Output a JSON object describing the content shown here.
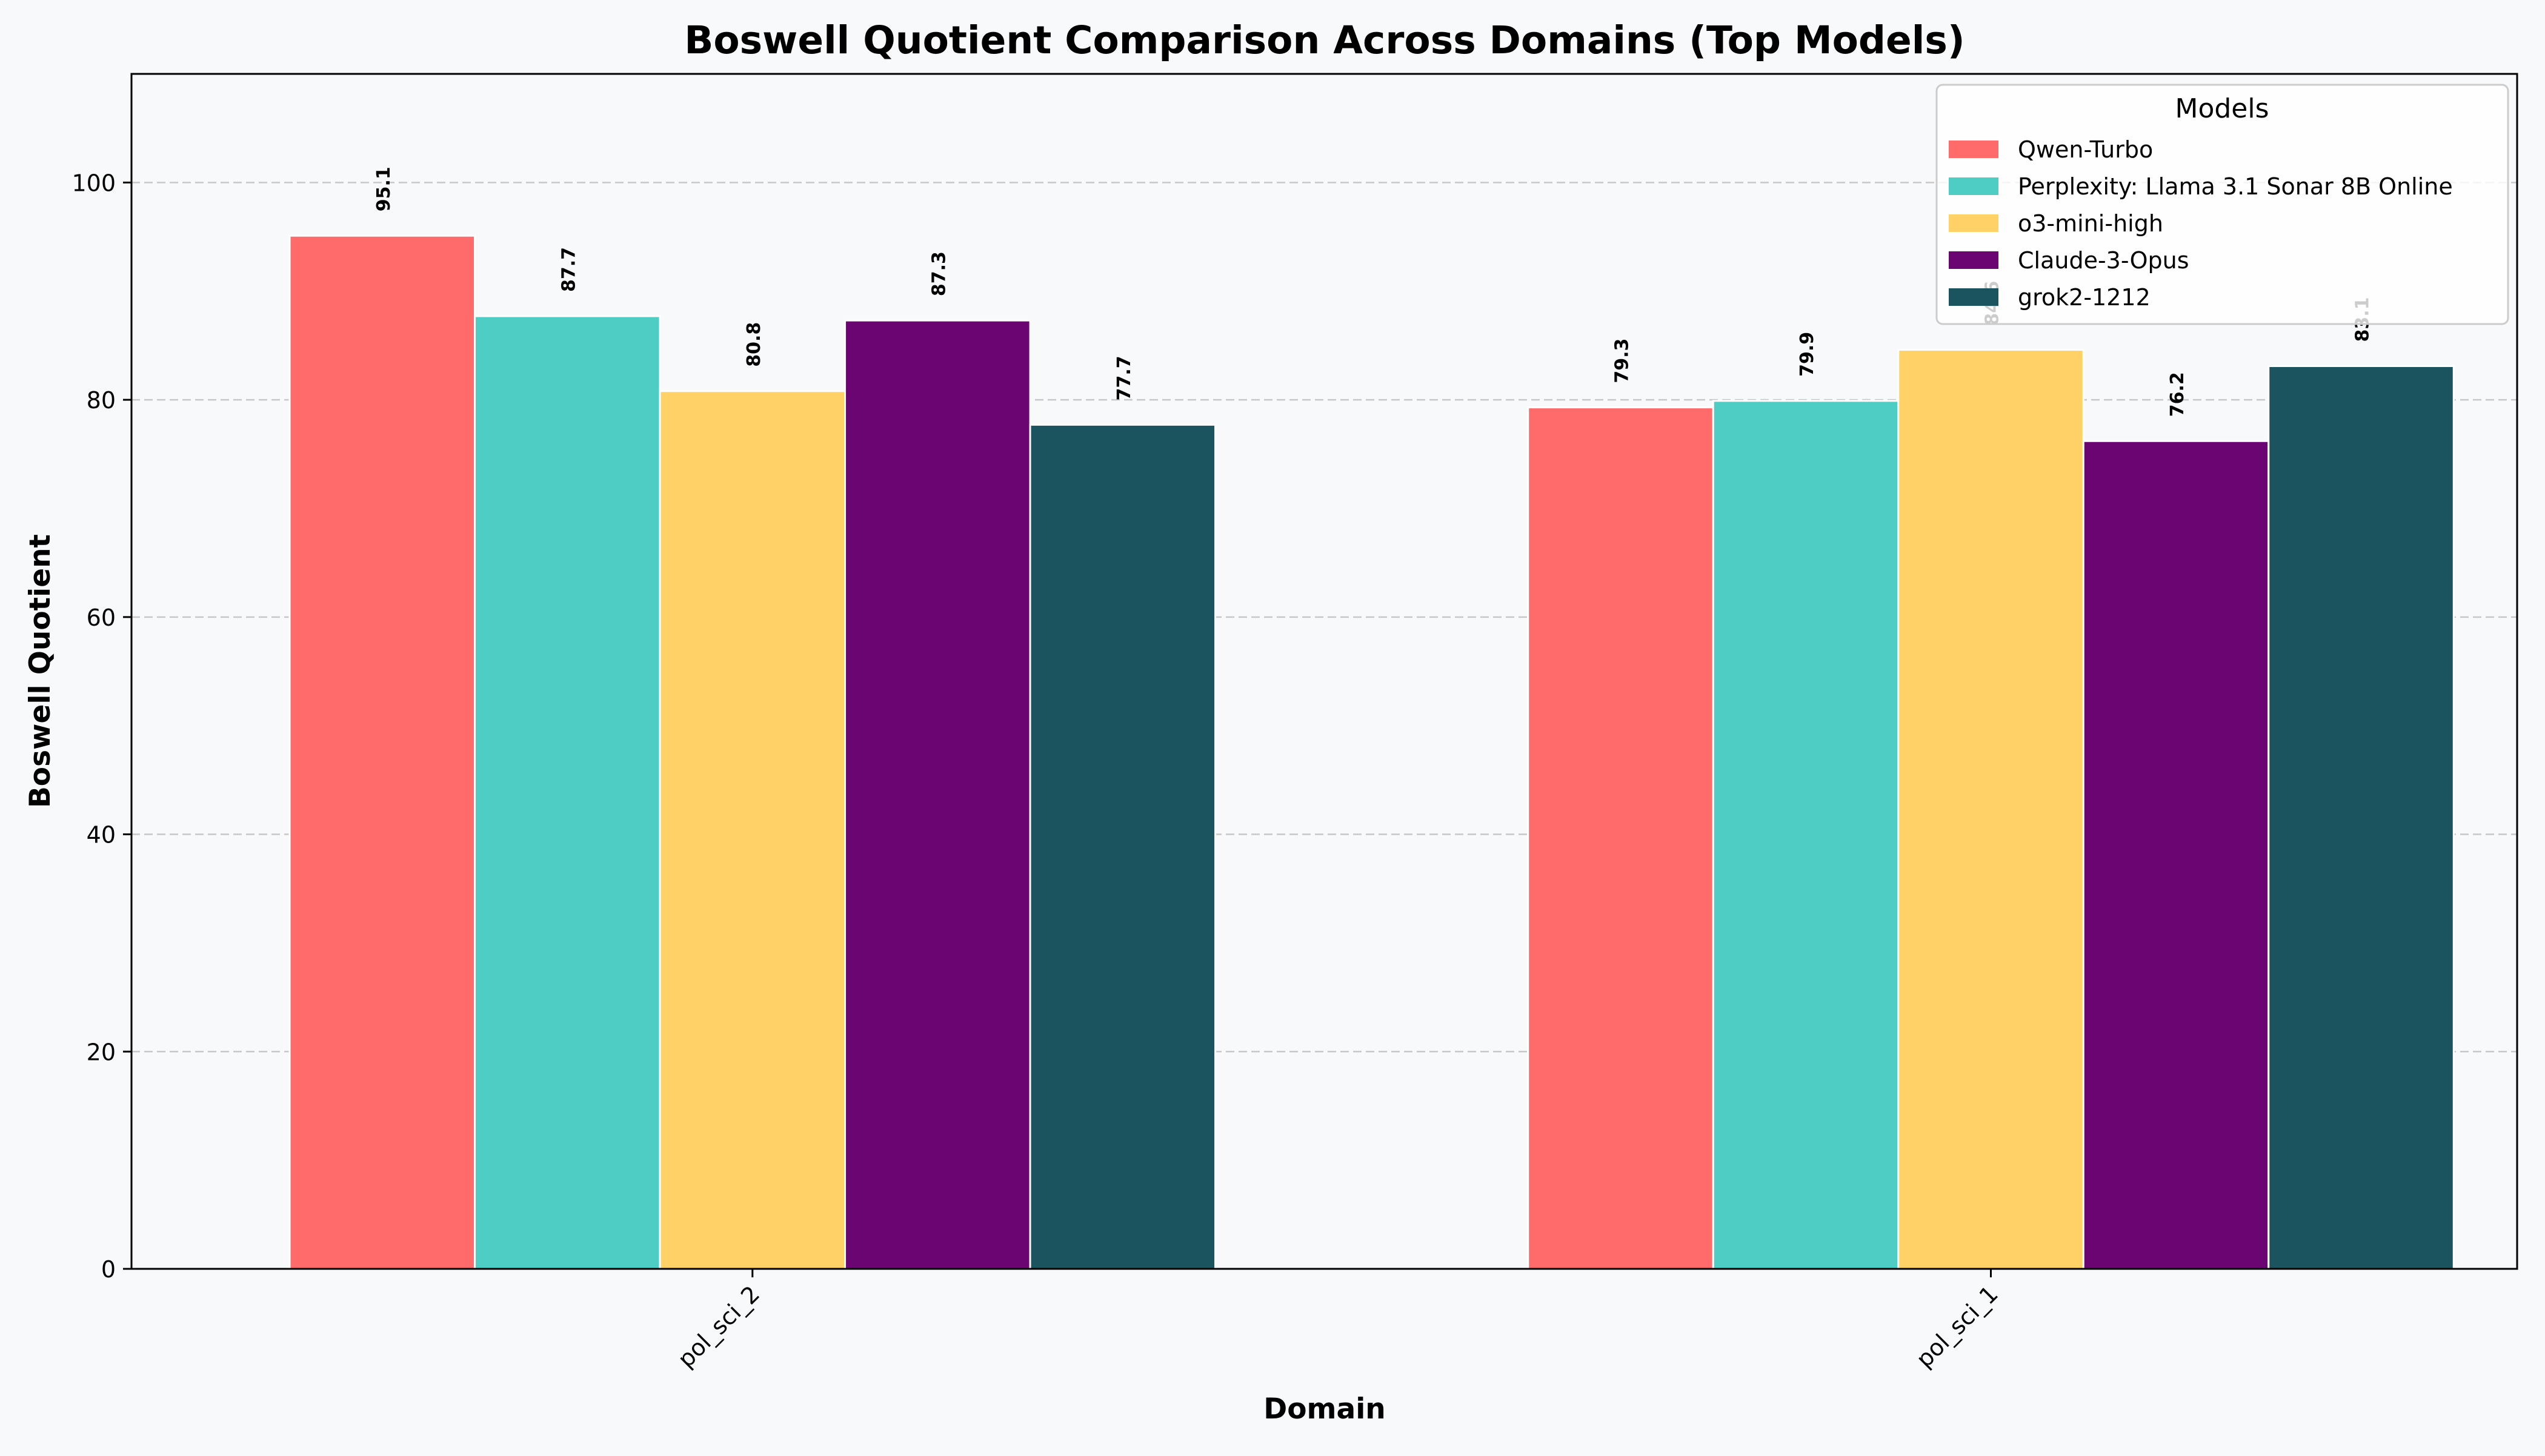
{
  "chart_data": {
    "type": "bar",
    "title": "Boswell Quotient Comparison Across Domains (Top Models)",
    "xlabel": "Domain",
    "ylabel": "Boswell Quotient",
    "ylim": [
      0,
      110
    ],
    "yticks": [
      0,
      20,
      40,
      60,
      80,
      100
    ],
    "grid": "y-dashed",
    "categories": [
      "pol_sci_2",
      "pol_sci_1"
    ],
    "legend": {
      "title": "Models",
      "placement": "top-right"
    },
    "series": [
      {
        "name": "Qwen-Turbo",
        "color": "#ff6b6b",
        "values": [
          95.1,
          79.3
        ]
      },
      {
        "name": "Perplexity: Llama 3.1 Sonar 8B Online",
        "color": "#4ecdc4",
        "values": [
          87.7,
          79.9
        ]
      },
      {
        "name": "o3-mini-high",
        "color": "#ffd166",
        "values": [
          80.8,
          84.6
        ]
      },
      {
        "name": "Claude-3-Opus",
        "color": "#6a0572",
        "values": [
          87.3,
          76.2
        ]
      },
      {
        "name": "grok2-1212",
        "color": "#1b535e",
        "values": [
          77.7,
          83.1
        ]
      }
    ]
  }
}
